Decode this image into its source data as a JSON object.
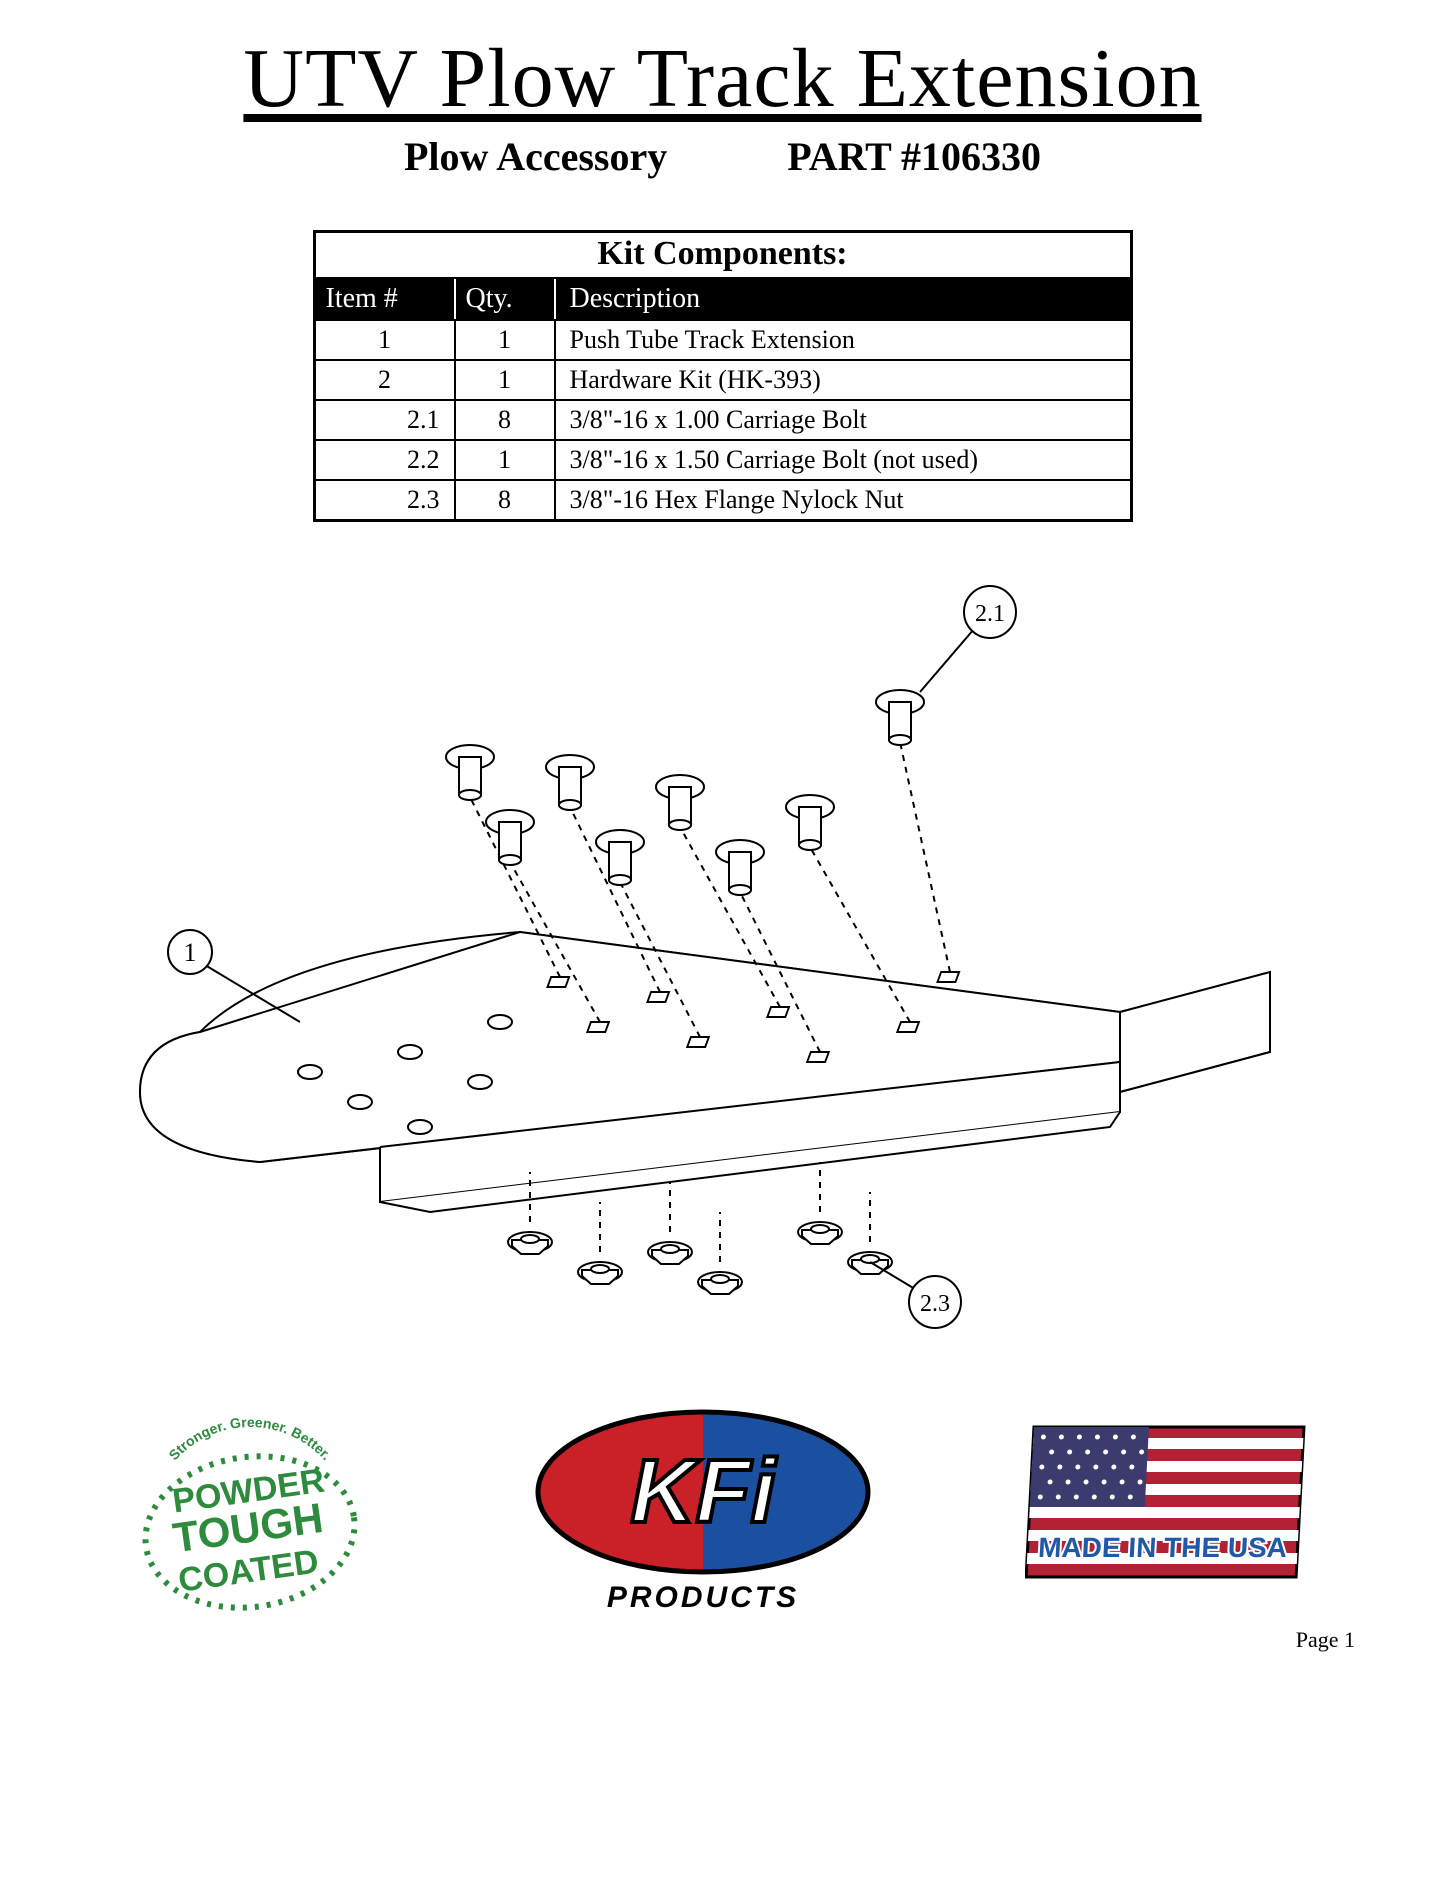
{
  "title": "UTV Plow Track Extension",
  "subtitle_left": "Plow Accessory",
  "subtitle_right": "PART #106330",
  "table": {
    "title": "Kit Components:",
    "head": {
      "item": "Item #",
      "qty": "Qty.",
      "desc": "Description"
    },
    "rows": [
      {
        "item": "1",
        "qty": "1",
        "desc": "Push Tube Track Extension",
        "sub": false
      },
      {
        "item": "2",
        "qty": "1",
        "desc": "Hardware Kit (HK-393)",
        "sub": false
      },
      {
        "item": "2.1",
        "qty": "8",
        "desc": "3/8\"-16 x 1.00 Carriage Bolt",
        "sub": true
      },
      {
        "item": "2.2",
        "qty": "1",
        "desc": "3/8\"-16 x 1.50 Carriage Bolt (not used)",
        "sub": true
      },
      {
        "item": "2.3",
        "qty": "8",
        "desc": "3/8\"-16 Hex Flange Nylock Nut",
        "sub": true
      }
    ]
  },
  "callouts": {
    "plate": "1",
    "bolt": "2.1",
    "nut": "2.3"
  },
  "logos": {
    "powder": {
      "line1": "POWDER",
      "line2": "TOUGH",
      "line3": "COATED",
      "arc": "Stronger. Greener. Better.",
      "color": "#2e8b3d"
    },
    "kfi": {
      "brand": "KFi",
      "sub": "PRODUCTS",
      "red": "#c92127",
      "blue": "#1b4fa0"
    },
    "usa": {
      "text": "MADE IN THE USA",
      "red": "#b22234",
      "blue": "#3c3b6e",
      "textcolor": "#1e5aa8"
    }
  },
  "page": "Page 1",
  "colors": {
    "bg": "#ffffff",
    "fg": "#000000"
  }
}
